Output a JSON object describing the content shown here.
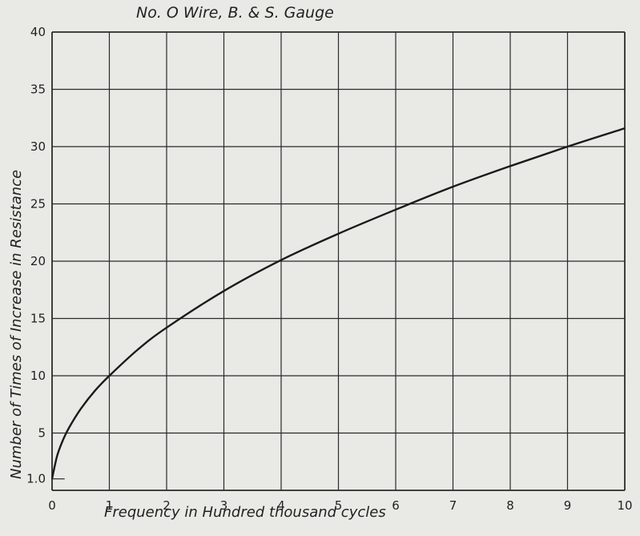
{
  "chart_data": {
    "type": "line",
    "title": "No. O Wire, B. & S. Gauge",
    "xlabel": "Frequency in Hundred thousand cycles",
    "ylabel": "Number of Times of Increase in Resistance",
    "xlim": [
      0,
      10
    ],
    "ylim": [
      0,
      40
    ],
    "x_ticks": [
      "0",
      "1",
      "2",
      "3",
      "4",
      "5",
      "6",
      "7",
      "8",
      "9",
      "10"
    ],
    "y_ticks": [
      {
        "value": 1,
        "label": "1.0"
      },
      {
        "value": 5,
        "label": "5"
      },
      {
        "value": 10,
        "label": "10"
      },
      {
        "value": 15,
        "label": "15"
      },
      {
        "value": 20,
        "label": "20"
      },
      {
        "value": 25,
        "label": "25"
      },
      {
        "value": 30,
        "label": "30"
      },
      {
        "value": 35,
        "label": "35"
      },
      {
        "value": 40,
        "label": "40"
      }
    ],
    "grid": true,
    "series": [
      {
        "x": [
          0,
          0.05,
          0.1,
          0.2,
          0.3,
          0.5,
          0.75,
          1,
          1.5,
          2,
          3,
          4,
          5,
          6,
          7,
          8,
          9,
          10
        ],
        "y": [
          1.0,
          2.2,
          3.2,
          4.5,
          5.5,
          7.1,
          8.7,
          10.0,
          12.3,
          14.2,
          17.4,
          20.1,
          22.4,
          24.5,
          26.5,
          28.3,
          30.0,
          31.6
        ]
      }
    ],
    "colors": {
      "line": "#1a1a1a",
      "grid": "#2a2a2a",
      "background": "#e9eae5"
    }
  }
}
